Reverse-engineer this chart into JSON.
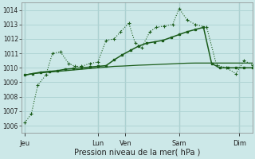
{
  "xlabel": "Pression niveau de la mer( hPa )",
  "bg_color": "#cce8e8",
  "grid_color": "#afd4d4",
  "line_color": "#1a5c1a",
  "ylim": [
    1005.5,
    1014.5
  ],
  "yticks": [
    1006,
    1007,
    1008,
    1009,
    1010,
    1011,
    1012,
    1013,
    1014
  ],
  "day_labels": [
    "Jeu",
    "Lun",
    "Ven",
    "Sam",
    "Dim"
  ],
  "day_positions": [
    0.0,
    4.5,
    6.2,
    9.5,
    13.2
  ],
  "xlim": [
    -0.2,
    14.0
  ],
  "vline_positions": [
    0.0,
    4.5,
    6.2,
    9.5,
    13.2
  ],
  "s1_x": [
    0.0,
    0.4,
    0.8,
    1.3,
    1.7,
    2.2,
    2.7,
    3.1,
    3.5,
    4.0,
    4.5,
    5.0,
    5.5,
    5.9,
    6.4,
    6.8,
    7.2,
    7.7,
    8.1,
    8.6,
    9.1,
    9.5,
    10.0,
    10.5,
    11.2,
    11.8,
    12.4,
    13.0,
    13.5,
    14.0
  ],
  "s1_y": [
    1006.2,
    1006.8,
    1008.8,
    1009.5,
    1011.0,
    1011.1,
    1010.3,
    1010.1,
    1010.1,
    1010.3,
    1010.4,
    1011.9,
    1012.0,
    1012.5,
    1013.1,
    1011.7,
    1011.4,
    1012.5,
    1012.8,
    1012.9,
    1013.0,
    1014.1,
    1013.3,
    1013.0,
    1012.8,
    1010.2,
    1010.0,
    1009.6,
    1010.5,
    1010.2
  ],
  "s2_x": [
    0.0,
    0.5,
    1.0,
    1.5,
    2.0,
    2.5,
    3.0,
    3.5,
    4.0,
    4.5,
    5.0,
    5.5,
    6.0,
    6.5,
    7.0,
    7.5,
    8.0,
    8.5,
    9.0,
    9.5,
    10.0,
    10.5,
    11.0,
    11.5,
    12.0,
    12.5,
    13.0,
    13.5,
    14.0
  ],
  "s2_y": [
    1009.5,
    1009.6,
    1009.65,
    1009.7,
    1009.75,
    1009.8,
    1009.85,
    1009.9,
    1009.95,
    1010.0,
    1010.05,
    1010.1,
    1010.12,
    1010.15,
    1010.18,
    1010.2,
    1010.22,
    1010.25,
    1010.27,
    1010.3,
    1010.32,
    1010.33,
    1010.33,
    1010.33,
    1010.33,
    1010.33,
    1010.33,
    1010.33,
    1010.33
  ],
  "s3_x": [
    0.0,
    0.5,
    1.0,
    1.5,
    2.0,
    2.5,
    3.0,
    3.5,
    4.0,
    4.5,
    5.0,
    5.5,
    6.0,
    6.5,
    7.0,
    7.5,
    8.0,
    8.5,
    9.0,
    9.5,
    10.0,
    10.5,
    11.0,
    11.5,
    12.0,
    12.5,
    13.0,
    13.5,
    14.0
  ],
  "s3_y": [
    1009.5,
    1009.6,
    1009.7,
    1009.75,
    1009.8,
    1009.9,
    1009.95,
    1010.0,
    1010.05,
    1010.1,
    1010.15,
    1010.55,
    1010.9,
    1011.2,
    1011.5,
    1011.7,
    1011.8,
    1011.9,
    1012.1,
    1012.3,
    1012.5,
    1012.65,
    1012.8,
    1010.3,
    1010.0,
    1010.0,
    1010.0,
    1010.0,
    1010.0
  ]
}
